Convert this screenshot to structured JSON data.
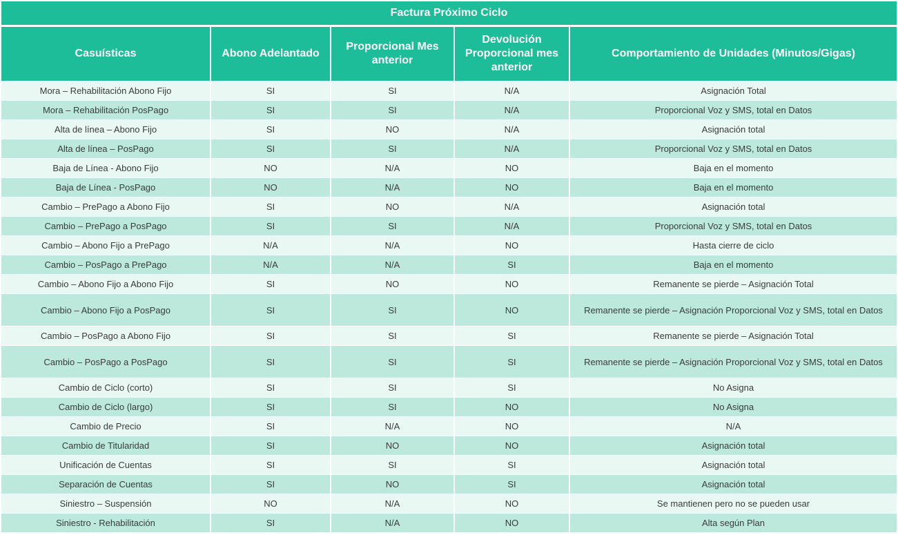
{
  "title": "Factura Próximo Ciclo",
  "headers": [
    "Casuísticas",
    "Abono Adelantado",
    "Proporcional Mes anterior",
    "Devolución Proporcional mes anterior",
    "Comportamiento de Unidades (Minutos/Gigas)"
  ],
  "rows": [
    [
      "Mora – Rehabilitación Abono Fijo",
      "SI",
      "SI",
      "N/A",
      "Asignación Total"
    ],
    [
      "Mora – Rehabilitación PosPago",
      "SI",
      "SI",
      "N/A",
      "Proporcional Voz y SMS, total en Datos"
    ],
    [
      "Alta de línea – Abono Fijo",
      "SI",
      "NO",
      "N/A",
      "Asignación total"
    ],
    [
      "Alta de línea – PosPago",
      "SI",
      "SI",
      "N/A",
      "Proporcional Voz y SMS, total en Datos"
    ],
    [
      "Baja de Línea - Abono Fijo",
      "NO",
      "N/A",
      "NO",
      "Baja en el momento"
    ],
    [
      "Baja de Línea - PosPago",
      "NO",
      "N/A",
      "NO",
      "Baja en el momento"
    ],
    [
      "Cambio – PrePago a Abono Fijo",
      "SI",
      "NO",
      "N/A",
      "Asignación total"
    ],
    [
      "Cambio – PrePago a PosPago",
      "SI",
      "SI",
      "N/A",
      "Proporcional Voz y SMS, total en Datos"
    ],
    [
      "Cambio – Abono Fijo a PrePago",
      "N/A",
      "N/A",
      "NO",
      "Hasta cierre de ciclo"
    ],
    [
      "Cambio – PosPago a PrePago",
      "N/A",
      "N/A",
      "SI",
      "Baja en el momento"
    ],
    [
      "Cambio – Abono Fijo a Abono Fijo",
      "SI",
      "NO",
      "NO",
      "Remanente se pierde – Asignación Total"
    ],
    [
      "Cambio – Abono Fijo a PosPago",
      "SI",
      "SI",
      "NO",
      "Remanente se pierde – Asignación Proporcional Voz y SMS, total en Datos"
    ],
    [
      "Cambio – PosPago a Abono Fijo",
      "SI",
      "SI",
      "SI",
      "Remanente se pierde – Asignación Total"
    ],
    [
      "Cambio – PosPago a PosPago",
      "SI",
      "SI",
      "SI",
      "Remanente se pierde – Asignación Proporcional Voz y SMS, total en Datos"
    ],
    [
      "Cambio de Ciclo (corto)",
      "SI",
      "SI",
      "SI",
      "No Asigna"
    ],
    [
      "Cambio de Ciclo (largo)",
      "SI",
      "SI",
      "NO",
      "No Asigna"
    ],
    [
      "Cambio de Precio",
      "SI",
      "N/A",
      "NO",
      "N/A"
    ],
    [
      "Cambio de Titularidad",
      "SI",
      "NO",
      "NO",
      "Asignación total"
    ],
    [
      "Unificación de Cuentas",
      "SI",
      "SI",
      "SI",
      "Asignación total"
    ],
    [
      "Separación de Cuentas",
      "SI",
      "NO",
      "SI",
      "Asignación total"
    ],
    [
      "Siniestro – Suspensión",
      "NO",
      "N/A",
      "NO",
      "Se mantienen pero no se pueden usar"
    ],
    [
      "Siniestro - Rehabilitación",
      "SI",
      "N/A",
      "NO",
      "Alta según Plan"
    ]
  ]
}
